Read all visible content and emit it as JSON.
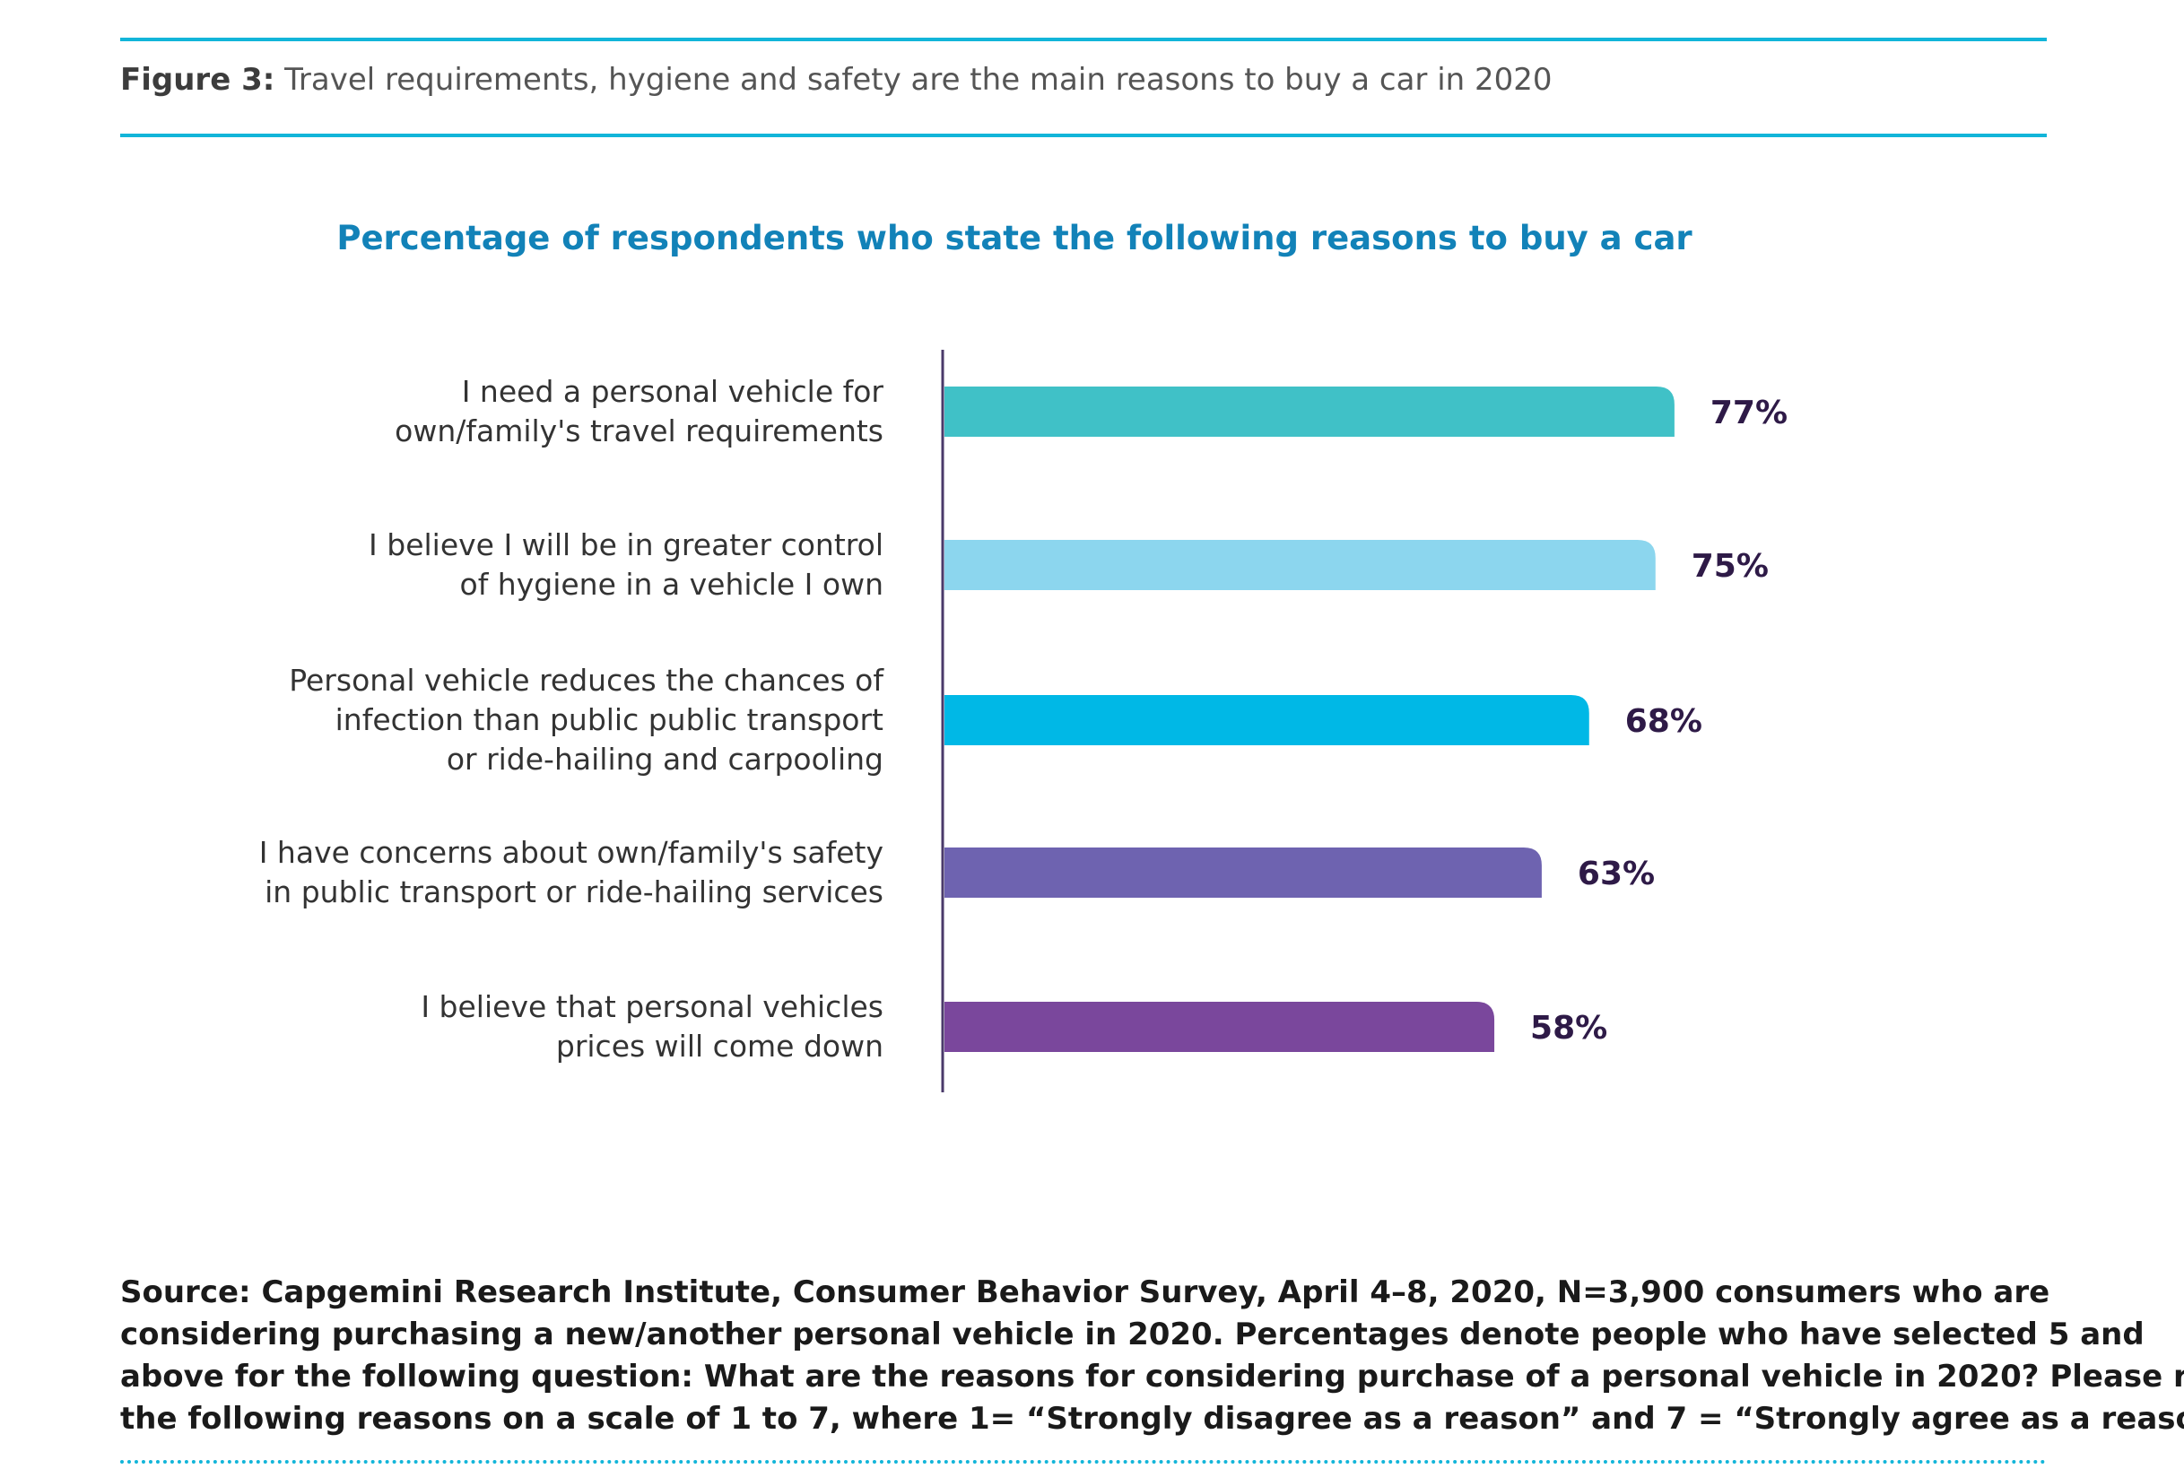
{
  "figure": {
    "label": "Figure 3:",
    "caption": "Travel requirements, hygiene and safety are the main reasons to buy a car in 2020"
  },
  "chart_data": {
    "type": "bar",
    "orientation": "horizontal",
    "title": "Percentage of respondents who state the following reasons to buy a car",
    "xlabel": "",
    "ylabel": "",
    "xlim": [
      0,
      100
    ],
    "grid": false,
    "legend": "none",
    "categories": [
      [
        "I need a personal vehicle for",
        "own/family's travel requirements"
      ],
      [
        "I believe I will be in greater control",
        "of hygiene in a vehicle I own"
      ],
      [
        "Personal vehicle reduces the chances of",
        "infection than public public transport",
        "or ride-hailing and carpooling"
      ],
      [
        "I have concerns about own/family's safety",
        "in public transport or ride-hailing services"
      ],
      [
        "I believe that personal vehicles",
        "prices will come down"
      ]
    ],
    "values": [
      77,
      75,
      68,
      63,
      58
    ],
    "value_labels": [
      "77%",
      "75%",
      "68%",
      "63%",
      "58%"
    ],
    "colors": [
      "#40c1c7",
      "#8cd6ee",
      "#00b8e6",
      "#6e63b0",
      "#7a479c"
    ]
  },
  "source": {
    "lines": [
      "Source: Capgemini Research Institute, Consumer Behavior Survey, April 4–8, 2020, N=3,900 consumers who are",
      "considering purchasing a new/another personal vehicle in 2020. Percentages denote people who have selected 5 and",
      "above for the following question: What are the reasons for considering purchase of a personal vehicle in 2020? Please rate",
      "the following reasons on a scale of 1 to 7, where 1= “Strongly disagree as a reason” and 7 = “Strongly agree as a reason.”"
    ]
  },
  "colors": {
    "accent_rule": "#12b5d9",
    "chart_title": "#1282b8",
    "value_text": "#2e1a47",
    "axis": "#4a3a6a"
  }
}
